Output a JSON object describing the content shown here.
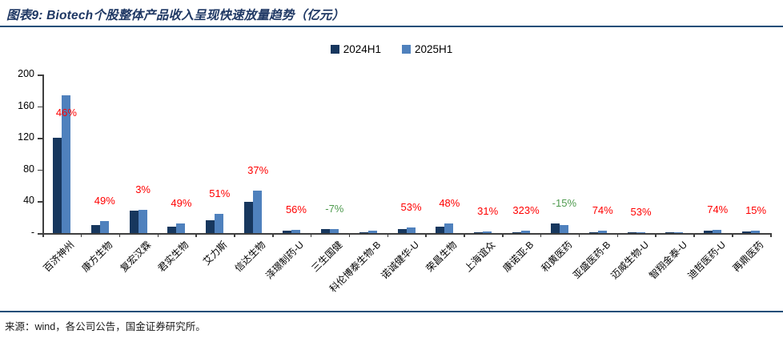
{
  "title": "图表9: Biotech个股整体产品收入呈现快速放量趋势（亿元）",
  "footer": "来源：wind，各公司公告，国金证券研究所。",
  "legend": [
    {
      "label": "2024H1",
      "color": "#17375e"
    },
    {
      "label": "2025H1",
      "color": "#4f81bd"
    }
  ],
  "colors": {
    "series_2024": "#17375e",
    "series_2025": "#4f81bd",
    "growth_positive": "#ff0000",
    "growth_negative": "#4e9a4e",
    "accent_rule": "#1f4e79",
    "axis": "#3f3f3f"
  },
  "chart_data": {
    "type": "bar",
    "title": "Biotech个股整体产品收入（亿元）",
    "categories": [
      "百济神州",
      "康方生物",
      "复宏汉霖",
      "君实生物",
      "艾力斯",
      "信达生物",
      "泽璟制药-U",
      "三生国健",
      "科伦博泰生物-B",
      "诺诚健华-U",
      "荣昌生物",
      "上海谊众",
      "康诺亚-B",
      "和黄医药",
      "亚盛医药-B",
      "迈威生物-U",
      "智翔金泰-U",
      "迪哲医药-U",
      "再鼎医药"
    ],
    "series": [
      {
        "name": "2024H1",
        "color": "#17375e",
        "values": [
          120,
          10,
          28,
          8,
          16,
          39,
          2.6,
          5.5,
          0.3,
          4.7,
          8,
          1.5,
          0.8,
          12,
          1.5,
          1.0,
          1.0,
          2.6,
          2.4
        ]
      },
      {
        "name": "2025H1",
        "color": "#4f81bd",
        "values": [
          174,
          14.9,
          28.8,
          11.9,
          24.2,
          53.4,
          4.1,
          5.1,
          3.0,
          7.2,
          11.8,
          2.0,
          3.2,
          10.2,
          2.6,
          1.5,
          1.5,
          4.5,
          2.8
        ]
      }
    ],
    "growth_labels": [
      "46%",
      "49%",
      "3%",
      "49%",
      "51%",
      "37%",
      "56%",
      "-7%",
      "",
      "53%",
      "48%",
      "31%",
      "323%",
      "-15%",
      "74%",
      "53%",
      "",
      "74%",
      "15%"
    ],
    "ylim": [
      0,
      200
    ],
    "ytick_step": 40,
    "yticks": [
      "-",
      "40",
      "80",
      "120",
      "160",
      "200"
    ],
    "zero_tick_label": "-",
    "grid": false,
    "legend_position": "top-center",
    "xlabel": "",
    "ylabel": ""
  }
}
